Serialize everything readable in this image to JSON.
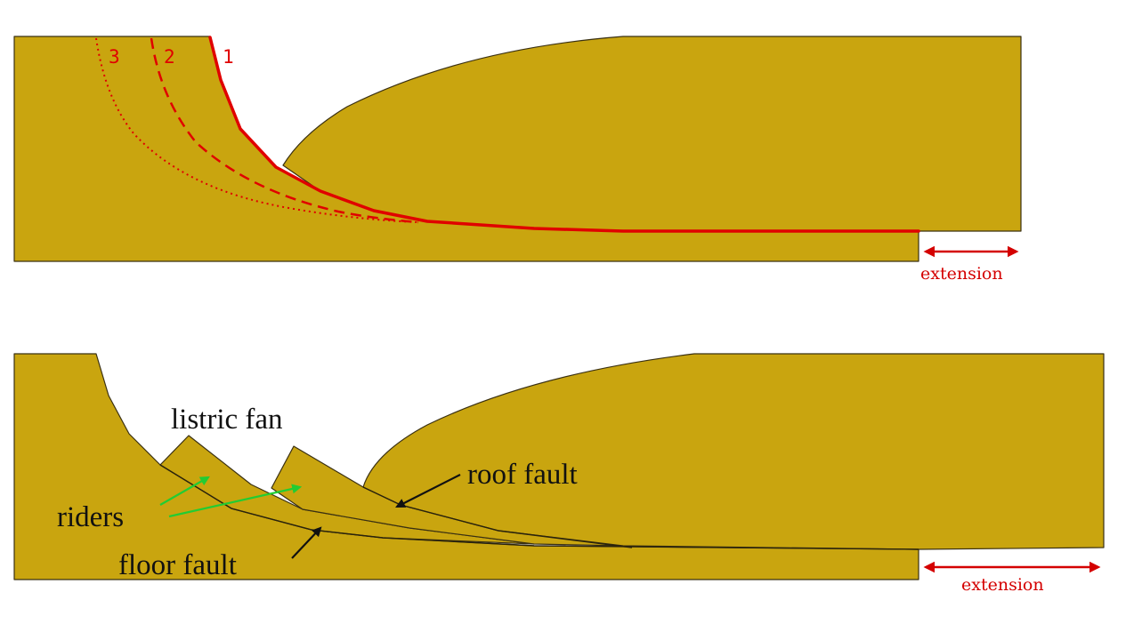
{
  "top_panel": {
    "fault_numbers": [
      "1",
      "2",
      "3"
    ],
    "extension_label": "extension"
  },
  "bottom_panel": {
    "labels": {
      "listric_fan": "listric fan",
      "roof_fault": "roof fault",
      "riders": "riders",
      "floor_fault": "floor fault"
    },
    "extension_label": "extension"
  },
  "colors": {
    "rock": "#c9a50f",
    "fault_red": "#e00000",
    "pointer_green": "#22cc33",
    "pointer_black": "#111111"
  }
}
